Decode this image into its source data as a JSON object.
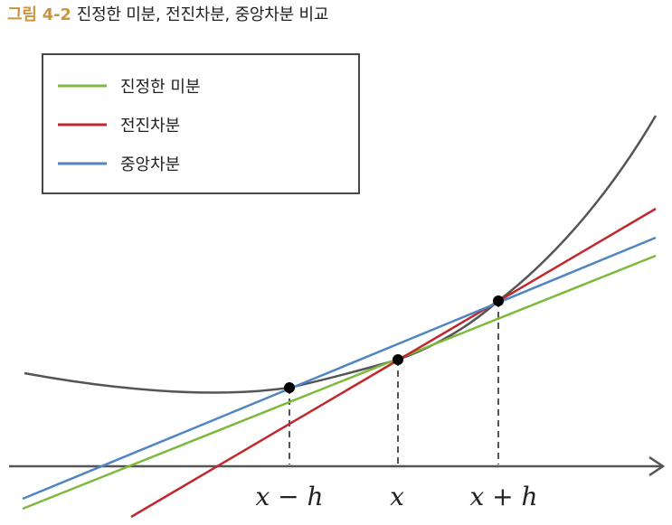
{
  "caption": {
    "label": "그림 4-2",
    "text": "진정한 미분, 전진차분, 중앙차분 비교",
    "label_color": "#C8963E"
  },
  "legend": {
    "items": [
      {
        "label": "진정한 미분",
        "color": "#7DBA3C"
      },
      {
        "label": "전진차분",
        "color": "#C0282D"
      },
      {
        "label": "중앙차분",
        "color": "#4F86C0"
      }
    ]
  },
  "axis": {
    "tick_labels": [
      "x − h",
      "x",
      "x + h"
    ]
  },
  "colors": {
    "curve": "#555555",
    "axis": "#555555",
    "point": "#000000",
    "guide": "#555555"
  }
}
